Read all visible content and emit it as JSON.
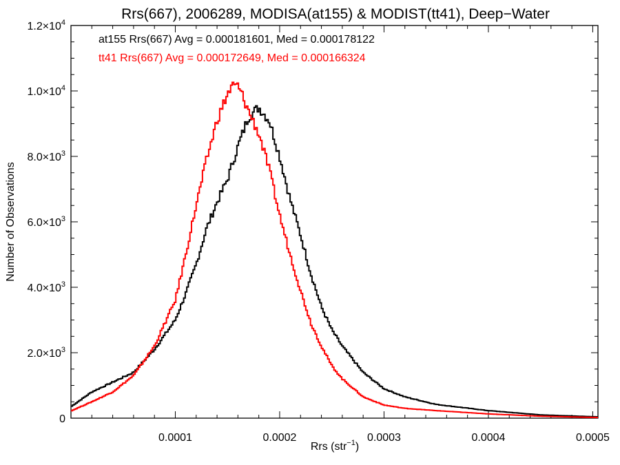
{
  "chart_data": {
    "type": "line",
    "title": "Rrs(667), 2006289, MODISA(at155) & MODIST(tt41), Deep−Water",
    "xlabel": "Rrs (str",
    "xlabel_sup": "−1",
    "xlabel_close": ")",
    "ylabel": "Number of Observations",
    "xlim": [
      0.0,
      0.000505
    ],
    "ylim": [
      0,
      12000
    ],
    "grid": false,
    "x_ticks": [
      {
        "value": 0.0001,
        "label": "0.0001"
      },
      {
        "value": 0.0002,
        "label": "0.0002"
      },
      {
        "value": 0.0003,
        "label": "0.0003"
      },
      {
        "value": 0.0004,
        "label": "0.0004"
      },
      {
        "value": 0.0005,
        "label": "0.0005"
      }
    ],
    "y_ticks": [
      {
        "value": 0,
        "mant": "0",
        "exp": ""
      },
      {
        "value": 2000,
        "mant": "2.0×10",
        "exp": "3"
      },
      {
        "value": 4000,
        "mant": "4.0×10",
        "exp": "3"
      },
      {
        "value": 6000,
        "mant": "6.0×10",
        "exp": "3"
      },
      {
        "value": 8000,
        "mant": "8.0×10",
        "exp": "3"
      },
      {
        "value": 10000,
        "mant": "1.0×10",
        "exp": "4"
      },
      {
        "value": 12000,
        "mant": "1.2×10",
        "exp": "4"
      }
    ],
    "annotations": [
      {
        "text": "at155 Rrs(667) Avg = 0.000181601, Med = 0.000178122",
        "color": "#000000"
      },
      {
        "text": "tt41 Rrs(667) Avg = 0.000172649, Med = 0.000166324",
        "color": "#ff0000"
      }
    ],
    "series": [
      {
        "color": "#000000",
        "step": true,
        "x": [
          0.0,
          2e-05,
          4e-05,
          6e-05,
          8e-05,
          0.0001,
          0.00011,
          0.00012,
          0.00013,
          0.00014,
          0.00015,
          0.00016,
          0.00017,
          0.00018,
          0.00019,
          0.0002,
          0.00021,
          0.00022,
          0.00023,
          0.00024,
          0.00025,
          0.00026,
          0.00028,
          0.0003,
          0.00032,
          0.00035,
          0.0004,
          0.00045,
          0.000505
        ],
        "y": [
          350,
          800,
          1100,
          1400,
          2100,
          3000,
          3800,
          4700,
          5800,
          6600,
          7300,
          8300,
          9200,
          9500,
          9100,
          8000,
          6700,
          5600,
          4400,
          3400,
          2700,
          2200,
          1400,
          900,
          650,
          420,
          230,
          100,
          40
        ]
      },
      {
        "color": "#ff0000",
        "step": true,
        "x": [
          0.0,
          2e-05,
          4e-05,
          6e-05,
          8e-05,
          0.0001,
          0.00011,
          0.00012,
          0.00013,
          0.00014,
          0.00015,
          0.000155,
          0.00016,
          0.000165,
          0.00017,
          0.00018,
          0.00019,
          0.0002,
          0.00021,
          0.00022,
          0.00023,
          0.00024,
          0.00025,
          0.00026,
          0.00028,
          0.0003,
          0.00032,
          0.00035,
          0.0004,
          0.00045,
          0.000505
        ],
        "y": [
          220,
          500,
          800,
          1300,
          2200,
          3600,
          5000,
          6500,
          7900,
          9100,
          9900,
          10150,
          10150,
          9800,
          9400,
          8700,
          7600,
          6200,
          5000,
          3900,
          2900,
          2200,
          1600,
          1200,
          650,
          400,
          300,
          230,
          130,
          60,
          20
        ]
      }
    ]
  }
}
